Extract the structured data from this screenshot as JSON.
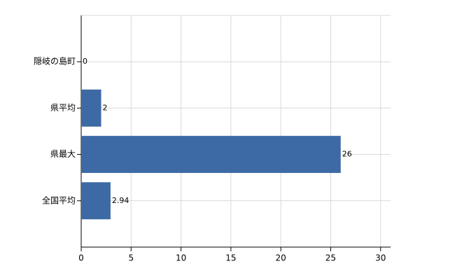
{
  "chart_data": {
    "type": "bar",
    "orientation": "horizontal",
    "categories": [
      "隠岐の島町",
      "県平均",
      "県最大",
      "全国平均"
    ],
    "values": [
      0,
      2,
      26,
      2.94
    ],
    "color": "#3d6aa5",
    "xlim": [
      0,
      31
    ],
    "xticks": [
      0,
      5,
      10,
      15,
      20,
      25,
      30
    ],
    "grid": true
  }
}
